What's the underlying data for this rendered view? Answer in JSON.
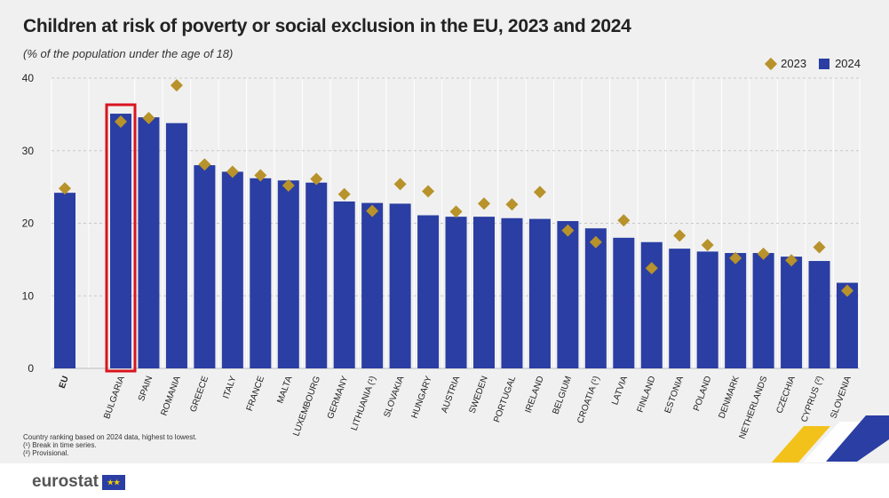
{
  "title": "Children at risk of poverty or social exclusion in the EU, 2023 and 2024",
  "subtitle": "(% of the population under the age of 18)",
  "legend": {
    "s2023": "2023",
    "s2024": "2024"
  },
  "notes": [
    "Country ranking based on 2024 data, highest to lowest.",
    "(¹) Break in time series.",
    "(²) Provisional."
  ],
  "logo_text": "eurostat",
  "colors": {
    "bar": "#2a3ea3",
    "diamond": "#b8922a",
    "highlight": "#d9141e"
  },
  "highlighted_category": "BULGARIA",
  "chart_data": {
    "type": "bar",
    "title": "Children at risk of poverty or social exclusion in the EU, 2023 and 2024",
    "subtitle": "(% of the population under the age of 18)",
    "xlabel": "",
    "ylabel": "",
    "ylim": [
      0,
      40
    ],
    "yticks": [
      0,
      10,
      20,
      30,
      40
    ],
    "grid": true,
    "legend_position": "top-right",
    "categories": [
      "EU",
      "BULGARIA",
      "SPAIN",
      "ROMANIA",
      "GREECE",
      "ITALY",
      "FRANCE",
      "MALTA",
      "LUXEMBOURG",
      "GERMANY",
      "LITHUANIA (¹)",
      "SLOVAKIA",
      "HUNGARY",
      "AUSTRIA",
      "SWEDEN",
      "PORTUGAL",
      "IRELAND",
      "BELGIUM",
      "CROATIA (¹)",
      "LATVIA",
      "FINLAND",
      "ESTONIA",
      "POLAND",
      "DENMARK",
      "NETHERLANDS",
      "CZECHIA",
      "CYPRUS (²)",
      "SLOVENIA"
    ],
    "series": [
      {
        "name": "2024",
        "type": "bar",
        "values": [
          24.2,
          35.1,
          34.6,
          33.8,
          28.0,
          27.1,
          26.2,
          25.9,
          25.6,
          23.0,
          22.8,
          22.7,
          21.1,
          20.9,
          20.9,
          20.7,
          20.6,
          20.3,
          19.3,
          18.0,
          17.4,
          16.5,
          16.1,
          15.9,
          15.9,
          15.4,
          14.8,
          11.8
        ]
      },
      {
        "name": "2023",
        "type": "marker",
        "values": [
          24.8,
          34.0,
          34.5,
          39.0,
          28.1,
          27.1,
          26.6,
          25.2,
          26.1,
          24.0,
          21.7,
          25.4,
          24.4,
          21.6,
          22.7,
          22.6,
          24.3,
          19.0,
          17.4,
          20.4,
          13.8,
          18.3,
          17.0,
          15.2,
          15.8,
          14.9,
          16.7,
          10.7
        ]
      }
    ]
  }
}
